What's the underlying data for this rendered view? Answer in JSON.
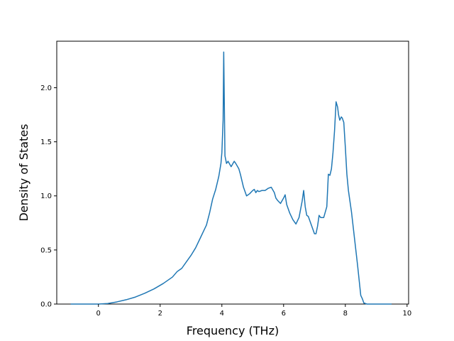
{
  "chart_data": {
    "type": "line",
    "title": "",
    "xlabel": "Frequency (THz)",
    "ylabel": "Density of States",
    "xlim": [
      -1.35,
      10.05
    ],
    "ylim": [
      0.0,
      2.43
    ],
    "xticks": [
      0,
      2,
      4,
      6,
      8,
      10
    ],
    "xtick_labels": [
      "0",
      "2",
      "4",
      "6",
      "8",
      "10"
    ],
    "yticks": [
      0.0,
      0.5,
      1.0,
      1.5,
      2.0
    ],
    "ytick_labels": [
      "0.0",
      "0.5",
      "1.0",
      "1.5",
      "2.0"
    ],
    "grid": false,
    "legend": "none",
    "series": [
      {
        "color": "#1f77b4",
        "x": [
          -0.9,
          -0.5,
          0.0,
          0.3,
          0.6,
          0.9,
          1.2,
          1.5,
          1.8,
          2.1,
          2.4,
          2.55,
          2.7,
          2.85,
          3.0,
          3.15,
          3.3,
          3.4,
          3.5,
          3.6,
          3.7,
          3.8,
          3.9,
          3.97,
          4.0,
          4.04,
          4.06,
          4.1,
          4.15,
          4.2,
          4.3,
          4.4,
          4.45,
          4.55,
          4.6,
          4.7,
          4.8,
          4.9,
          5.0,
          5.05,
          5.1,
          5.15,
          5.2,
          5.3,
          5.4,
          5.5,
          5.6,
          5.7,
          5.75,
          5.8,
          5.9,
          6.0,
          6.05,
          6.1,
          6.2,
          6.3,
          6.4,
          6.5,
          6.6,
          6.65,
          6.7,
          6.75,
          6.8,
          6.9,
          7.0,
          7.05,
          7.1,
          7.15,
          7.2,
          7.3,
          7.4,
          7.45,
          7.5,
          7.55,
          7.6,
          7.65,
          7.7,
          7.75,
          7.78,
          7.82,
          7.87,
          7.9,
          7.95,
          8.0,
          8.05,
          8.1,
          8.15,
          8.2,
          8.3,
          8.4,
          8.5,
          8.55,
          8.6,
          8.7,
          9.0,
          9.5
        ],
        "y": [
          0.0,
          0.0,
          0.0,
          0.005,
          0.02,
          0.04,
          0.065,
          0.1,
          0.14,
          0.19,
          0.25,
          0.3,
          0.33,
          0.39,
          0.45,
          0.52,
          0.61,
          0.67,
          0.73,
          0.84,
          0.97,
          1.06,
          1.18,
          1.3,
          1.4,
          1.7,
          2.33,
          1.37,
          1.3,
          1.32,
          1.27,
          1.32,
          1.3,
          1.25,
          1.2,
          1.08,
          1.0,
          1.02,
          1.05,
          1.06,
          1.03,
          1.05,
          1.04,
          1.05,
          1.05,
          1.07,
          1.08,
          1.03,
          0.98,
          0.96,
          0.93,
          0.98,
          1.01,
          0.92,
          0.84,
          0.78,
          0.74,
          0.8,
          0.95,
          1.05,
          0.9,
          0.82,
          0.81,
          0.73,
          0.65,
          0.65,
          0.72,
          0.82,
          0.8,
          0.8,
          0.9,
          1.2,
          1.19,
          1.25,
          1.4,
          1.6,
          1.87,
          1.82,
          1.75,
          1.7,
          1.73,
          1.72,
          1.68,
          1.45,
          1.2,
          1.05,
          0.95,
          0.85,
          0.6,
          0.35,
          0.08,
          0.05,
          0.01,
          0.0,
          0.0,
          0.0
        ]
      }
    ]
  }
}
